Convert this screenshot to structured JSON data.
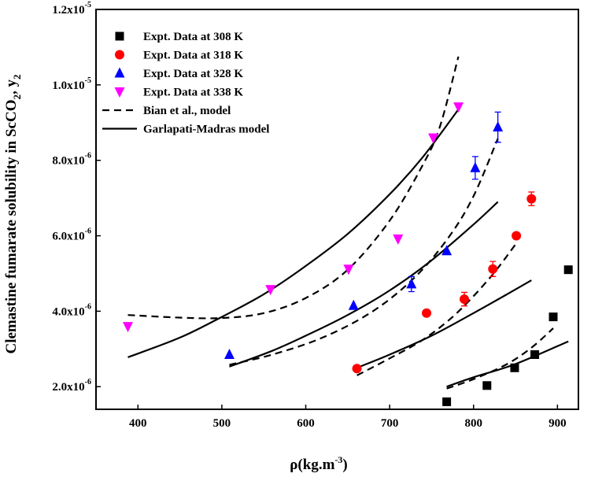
{
  "chart_data": {
    "type": "scatter",
    "title": "",
    "xlabel": "ρ(kg.m",
    "xlabel_sup": "-3",
    "xlabel_end": ")",
    "ylabel": {
      "p1": "Clemastine fumarate solubility in ScCO",
      "p2": "2",
      "p3": ", y",
      "p4": "2"
    },
    "xlim": [
      350,
      925
    ],
    "ylim": [
      1.4e-06,
      1.2e-05
    ],
    "x_ticks": [
      {
        "value": 400,
        "label": "400"
      },
      {
        "value": 500,
        "label": "500"
      },
      {
        "value": 600,
        "label": "600"
      },
      {
        "value": 700,
        "label": "700"
      },
      {
        "value": 800,
        "label": "800"
      },
      {
        "value": 900,
        "label": "900"
      }
    ],
    "y_ticks": [
      {
        "value": 2e-06,
        "base": "2.0x10",
        "exp": "-6"
      },
      {
        "value": 4e-06,
        "base": "4.0x10",
        "exp": "-6"
      },
      {
        "value": 6e-06,
        "base": "6.0x10",
        "exp": "-6"
      },
      {
        "value": 8e-06,
        "base": "8.0x10",
        "exp": "-6"
      },
      {
        "value": 1e-05,
        "base": "1.0x10",
        "exp": "-5"
      },
      {
        "value": 1.2e-05,
        "base": "1.2x10",
        "exp": "-5"
      }
    ],
    "series": [
      {
        "name": "Expt. Data at 308 K",
        "marker": "square",
        "color": "#000000",
        "points": [
          {
            "x": 768,
            "y": 1.6e-06
          },
          {
            "x": 816,
            "y": 2.03e-06
          },
          {
            "x": 849,
            "y": 2.5e-06
          },
          {
            "x": 873,
            "y": 2.85e-06
          },
          {
            "x": 895,
            "y": 3.85e-06
          },
          {
            "x": 913,
            "y": 5.1e-06
          }
        ]
      },
      {
        "name": "Expt. Data at 318 K",
        "marker": "circle",
        "color": "#ff0000",
        "points": [
          {
            "x": 661,
            "y": 2.48e-06
          },
          {
            "x": 744,
            "y": 3.95e-06
          },
          {
            "x": 789,
            "y": 4.32e-06,
            "err": 1.8e-07
          },
          {
            "x": 823,
            "y": 5.12e-06,
            "err": 2e-07
          },
          {
            "x": 851,
            "y": 6e-06
          },
          {
            "x": 869,
            "y": 6.98e-06,
            "err": 1.8e-07
          }
        ]
      },
      {
        "name": "Expt. Data at 328 K",
        "marker": "triangle-up",
        "color": "#0000ff",
        "points": [
          {
            "x": 509,
            "y": 2.85e-06
          },
          {
            "x": 657,
            "y": 4.15e-06
          },
          {
            "x": 726,
            "y": 4.72e-06,
            "err": 2e-07
          },
          {
            "x": 768,
            "y": 5.6e-06
          },
          {
            "x": 802,
            "y": 7.8e-06,
            "err": 3e-07
          },
          {
            "x": 829,
            "y": 8.88e-06,
            "err": 4e-07
          }
        ]
      },
      {
        "name": "Expt. Data at 338 K",
        "marker": "triangle-down",
        "color": "#ff00ff",
        "points": [
          {
            "x": 388,
            "y": 3.6e-06
          },
          {
            "x": 558,
            "y": 4.58e-06
          },
          {
            "x": 651,
            "y": 5.12e-06
          },
          {
            "x": 710,
            "y": 5.92e-06
          },
          {
            "x": 752,
            "y": 8.6e-06
          },
          {
            "x": 782,
            "y": 9.42e-06
          }
        ]
      }
    ],
    "models": [
      {
        "name": "Bian et al., model",
        "style": "dashed",
        "curves": [
          [
            [
              388,
              3.9e-06
            ],
            [
              450,
              3.83e-06
            ],
            [
              500,
              3.82e-06
            ],
            [
              550,
              3.95e-06
            ],
            [
              600,
              4.35e-06
            ],
            [
              650,
              5.1e-06
            ],
            [
              700,
              6.4e-06
            ],
            [
              740,
              7.9e-06
            ],
            [
              760,
              8.9e-06
            ],
            [
              782,
              1.075e-05
            ]
          ],
          [
            [
              509,
              2.58e-06
            ],
            [
              560,
              2.85e-06
            ],
            [
              620,
              3.3e-06
            ],
            [
              680,
              4e-06
            ],
            [
              730,
              4.9e-06
            ],
            [
              770,
              5.95e-06
            ],
            [
              800,
              7.05e-06
            ],
            [
              829,
              8.58e-06
            ]
          ],
          [
            [
              661,
              2.3e-06
            ],
            [
              700,
              2.75e-06
            ],
            [
              740,
              3.25e-06
            ],
            [
              780,
              3.95e-06
            ],
            [
              820,
              4.9e-06
            ],
            [
              851,
              5.8e-06
            ]
          ],
          [
            [
              768,
              1.95e-06
            ],
            [
              800,
              2.2e-06
            ],
            [
              840,
              2.6e-06
            ],
            [
              870,
              3.05e-06
            ],
            [
              895,
              3.55e-06
            ]
          ]
        ]
      },
      {
        "name": "Garlapati-Madras model",
        "style": "solid",
        "curves": [
          [
            [
              388,
              2.78e-06
            ],
            [
              450,
              3.3e-06
            ],
            [
              500,
              3.85e-06
            ],
            [
              550,
              4.45e-06
            ],
            [
              600,
              5.2e-06
            ],
            [
              650,
              6.05e-06
            ],
            [
              700,
              7.1e-06
            ],
            [
              740,
              8.1e-06
            ],
            [
              782,
              9.35e-06
            ]
          ],
          [
            [
              509,
              2.53e-06
            ],
            [
              560,
              2.95e-06
            ],
            [
              600,
              3.35e-06
            ],
            [
              650,
              3.9e-06
            ],
            [
              700,
              4.55e-06
            ],
            [
              750,
              5.35e-06
            ],
            [
              800,
              6.3e-06
            ],
            [
              829,
              6.9e-06
            ]
          ],
          [
            [
              661,
              2.5e-06
            ],
            [
              700,
              2.85e-06
            ],
            [
              750,
              3.35e-06
            ],
            [
              800,
              3.95e-06
            ],
            [
              840,
              4.45e-06
            ],
            [
              869,
              4.82e-06
            ]
          ],
          [
            [
              768,
              2e-06
            ],
            [
              800,
              2.25e-06
            ],
            [
              850,
              2.6e-06
            ],
            [
              913,
              3.2e-06
            ]
          ]
        ]
      }
    ],
    "legend": {
      "position": "top-left",
      "entries": [
        {
          "label": "Expt. Data at 308 K",
          "symbol": "square",
          "color": "#000000"
        },
        {
          "label": "Expt. Data at 318 K",
          "symbol": "circle",
          "color": "#ff0000"
        },
        {
          "label": "Expt. Data at 328 K",
          "symbol": "triangle-up",
          "color": "#0000ff"
        },
        {
          "label": "Expt. Data at 338 K",
          "symbol": "triangle-down",
          "color": "#ff00ff"
        },
        {
          "label": "Bian et al., model",
          "symbol": "dashed-line",
          "color": "#000000"
        },
        {
          "label": "Garlapati-Madras model",
          "symbol": "solid-line",
          "color": "#000000"
        }
      ]
    }
  }
}
